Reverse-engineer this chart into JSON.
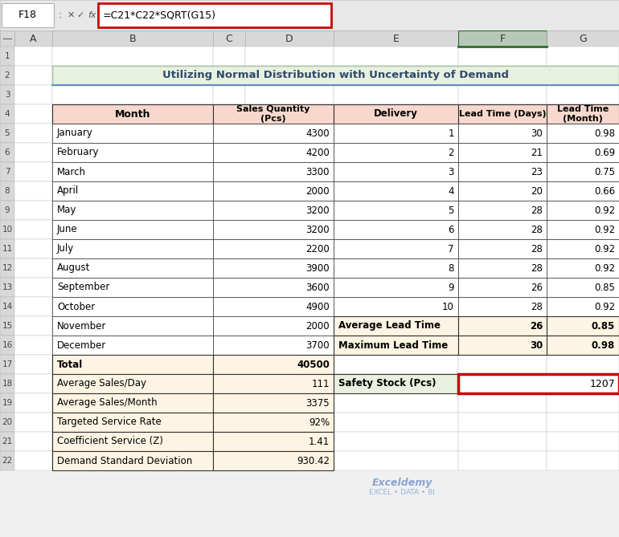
{
  "title": "Utilizing Normal Distribution with Uncertainty of Demand",
  "title_bg": "#e8f0e0",
  "title_border": "#a8c8a0",
  "title_color": "#2e4a6b",
  "formula_bar_text": "=C21*C22*SQRT(G15)",
  "formula_cell": "F18",
  "header_bg": "#f8d8cc",
  "summary_bg": "#fdf4e3",
  "safety_stock_bg": "#e8f0e0",
  "safety_stock_border": "#cc0000",
  "left_table_headers": [
    "Month",
    "Sales Quantity\n(Pcs)"
  ],
  "months": [
    "January",
    "February",
    "March",
    "April",
    "May",
    "June",
    "July",
    "August",
    "September",
    "October",
    "November",
    "December"
  ],
  "sales": [
    "4300",
    "4200",
    "3300",
    "2000",
    "3200",
    "3200",
    "2200",
    "3900",
    "3600",
    "4900",
    "2000",
    "3700"
  ],
  "summary_rows": [
    [
      "Total",
      "40500",
      true
    ],
    [
      "Average Sales/Day",
      "111",
      false
    ],
    [
      "Average Sales/Month",
      "3375",
      false
    ],
    [
      "Targeted Service Rate",
      "92%",
      false
    ],
    [
      "Coefficient Service (Z)",
      "1.41",
      false
    ],
    [
      "Demand Standard Deviation",
      "930.42",
      false
    ]
  ],
  "right_table_headers": [
    "Delivery",
    "Lead Time (Days)",
    "Lead Time\n(Month)"
  ],
  "deliveries": [
    "1",
    "2",
    "3",
    "4",
    "5",
    "6",
    "7",
    "8",
    "9",
    "10"
  ],
  "lead_days": [
    "30",
    "21",
    "23",
    "20",
    "28",
    "28",
    "28",
    "28",
    "26",
    "28"
  ],
  "lead_months": [
    "0.98",
    "0.69",
    "0.75",
    "0.66",
    "0.92",
    "0.92",
    "0.92",
    "0.92",
    "0.85",
    "0.92"
  ],
  "avg_lead_days": "26",
  "avg_lead_months": "0.85",
  "max_lead_days": "30",
  "max_lead_months": "0.98",
  "safety_stock_label": "Safety Stock (Pcs)",
  "safety_stock_value": "1207",
  "spreadsheet_bg": "#f0f0f0",
  "col_header_bg": "#d8d8d8",
  "active_col_bg": "#b8c8b8",
  "active_col_border": "#2e6b2e",
  "grid_color": "#c0c0c0",
  "watermark_text": "Exceldemy",
  "watermark_sub": "EXCEL • DATA • BI",
  "watermark_color": "#4472c4"
}
